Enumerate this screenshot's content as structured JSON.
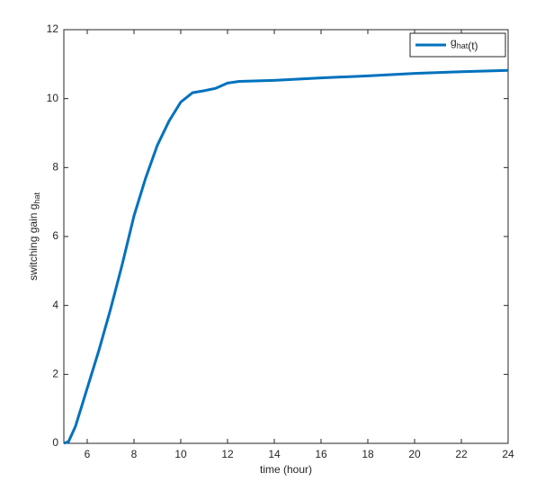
{
  "chart_data": {
    "type": "line",
    "xlabel": "time (hour)",
    "ylabel": "switching gain g_{hat}",
    "x": [
      5,
      5.2,
      5.5,
      6,
      6.5,
      7,
      7.5,
      8,
      8.5,
      9,
      9.5,
      10,
      10.5,
      11,
      11.5,
      12,
      12.5,
      14,
      16,
      18,
      20,
      22,
      24
    ],
    "series": [
      {
        "name": "g_{hat}(t)",
        "color": "#0072bd",
        "values": [
          0,
          0.05,
          0.5,
          1.6,
          2.7,
          3.9,
          5.2,
          6.6,
          7.7,
          8.65,
          9.35,
          9.9,
          10.17,
          10.23,
          10.3,
          10.45,
          10.5,
          10.53,
          10.6,
          10.66,
          10.73,
          10.78,
          10.82
        ]
      }
    ],
    "xlim": [
      5,
      24
    ],
    "xticks": [
      6,
      8,
      10,
      12,
      14,
      16,
      18,
      20,
      22,
      24
    ],
    "ylim": [
      0,
      12
    ],
    "yticks": [
      0,
      2,
      4,
      6,
      8,
      10,
      12
    ],
    "grid": false,
    "legend": "top-right"
  }
}
